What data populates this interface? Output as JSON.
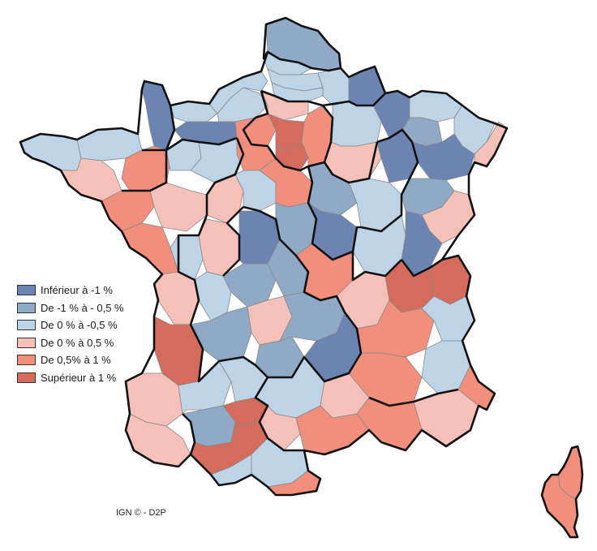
{
  "legend": [
    {
      "label": "Inférieur à -1 %",
      "color": "#6b84b2"
    },
    {
      "label": "De -1 % à - 0,5 %",
      "color": "#8eaac6"
    },
    {
      "label": "De 0 % à -0,5 %",
      "color": "#bdd4e6"
    },
    {
      "label": "De 0 % à 0,5 %",
      "color": "#f5c0b7"
    },
    {
      "label": "De 0,5% à 1 %",
      "color": "#f28f7c"
    },
    {
      "label": "Supérieur à 1 %",
      "color": "#d46b5c"
    }
  ],
  "credit": "IGN © - D2P"
}
